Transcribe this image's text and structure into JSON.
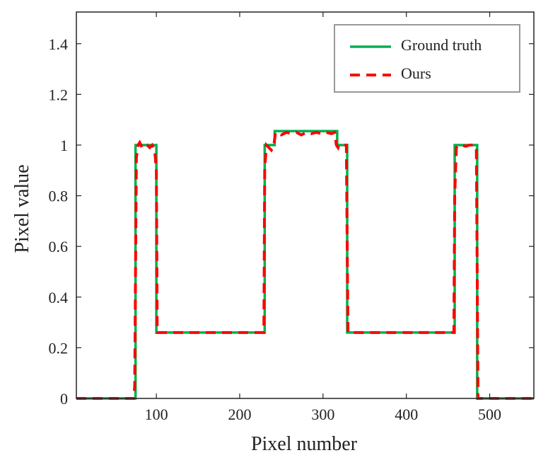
{
  "chart_data": {
    "type": "line",
    "xlabel": "Pixel number",
    "ylabel": "Pixel value",
    "xlim": [
      4,
      553
    ],
    "ylim": [
      0,
      1.525
    ],
    "xticks": [
      100,
      200,
      300,
      400,
      500
    ],
    "yticks": [
      0,
      0.2,
      0.4,
      0.6,
      0.8,
      1,
      1.2,
      1.4
    ],
    "legend": "upper right",
    "series": [
      {
        "name": "Ground truth",
        "color": "#00b050",
        "dash": false,
        "x": [
          4,
          75,
          75,
          100,
          100,
          230,
          230,
          242,
          242,
          317,
          317,
          329,
          329,
          458,
          458,
          485,
          485,
          553
        ],
        "values": [
          0,
          0,
          1.0,
          1.0,
          0.26,
          0.26,
          1.0,
          1.0,
          1.055,
          1.055,
          1.0,
          1.0,
          0.26,
          0.26,
          1.0,
          1.0,
          0,
          0
        ]
      },
      {
        "name": "Ours",
        "color": "#ff0000",
        "dash": true,
        "x": [
          4,
          73,
          74,
          76,
          78,
          80,
          83,
          86,
          89,
          92,
          95,
          98,
          100,
          101,
          229,
          230,
          232,
          235,
          238,
          241,
          243,
          250,
          256,
          262,
          268,
          274,
          280,
          286,
          292,
          298,
          304,
          310,
          314,
          316,
          318,
          319,
          328,
          329,
          330,
          457,
          458,
          460,
          463,
          467,
          471,
          476,
          481,
          484,
          485,
          486,
          553
        ],
        "values": [
          0,
          0,
          0.05,
          0.95,
          1.0,
          1.01,
          0.99,
          1.0,
          1.0,
          0.99,
          1.0,
          0.98,
          0.9,
          0.26,
          0.26,
          0.9,
          1.0,
          0.99,
          0.98,
          1.0,
          1.05,
          1.04,
          1.05,
          1.045,
          1.05,
          1.04,
          1.05,
          1.045,
          1.05,
          1.045,
          1.05,
          1.045,
          1.05,
          1.0,
          0.99,
          1.0,
          1.0,
          0.6,
          0.26,
          0.26,
          0.8,
          0.99,
          1.0,
          1.0,
          0.995,
          1.0,
          1.0,
          0.99,
          0.5,
          0,
          0
        ]
      }
    ]
  }
}
